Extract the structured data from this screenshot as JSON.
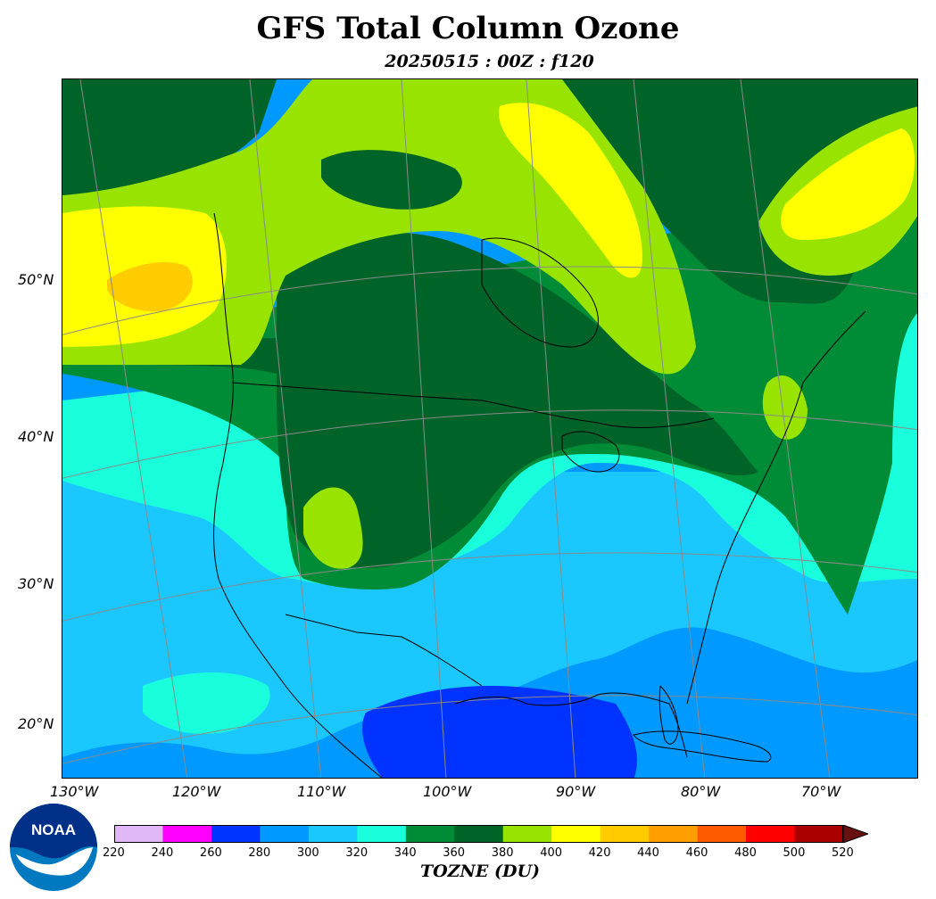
{
  "title": "GFS Total Column Ozone",
  "subtitle": "20250515 : 00Z : f120",
  "colorbar_label": "TOZNE (DU)",
  "logo_text": "NOAA",
  "lat_labels": [
    "50°N",
    "40°N",
    "30°N",
    "20°N"
  ],
  "lon_labels": [
    "130°W",
    "120°W",
    "110°W",
    "100°W",
    "90°W",
    "80°W",
    "70°W"
  ],
  "colorbar": {
    "ticks": [
      "220",
      "240",
      "260",
      "280",
      "300",
      "320",
      "340",
      "360",
      "380",
      "400",
      "420",
      "440",
      "460",
      "480",
      "500",
      "520"
    ],
    "colors": [
      "#e0b8f8",
      "#ff00ff",
      "#0033ff",
      "#0099ff",
      "#1ac8ff",
      "#1affdb",
      "#008c36",
      "#006428",
      "#98e400",
      "#ffff00",
      "#ffcc00",
      "#ff9e00",
      "#ff5a00",
      "#ff0000",
      "#aa0000",
      "#661010"
    ]
  },
  "map_colors": {
    "du_300_320": "#1ac8ff",
    "du_320_340": "#1affdb",
    "du_340_360": "#008c36",
    "du_360_380": "#006428",
    "du_380_400": "#98e400",
    "du_400_420": "#ffff00",
    "du_420_440": "#ffcc00",
    "du_280_300": "#0099ff",
    "du_260_280": "#0033ff"
  }
}
